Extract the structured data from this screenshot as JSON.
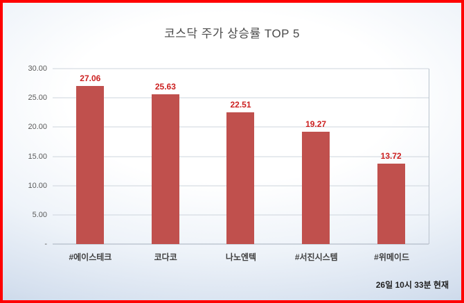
{
  "title": "코스닥 주가 상승률 TOP 5",
  "footer": "26일 10시  33분 현재",
  "frame": {
    "border_color": "#ff0000"
  },
  "chart_data": {
    "type": "bar",
    "title": "코스닥 주가 상승률 TOP 5",
    "categories": [
      "#에이스테크",
      "코다코",
      "나노엔텍",
      "#서진시스템",
      "#위메이드"
    ],
    "values": [
      27.06,
      25.63,
      22.51,
      19.27,
      13.72
    ],
    "value_labels": [
      "27.06",
      "25.63",
      "22.51",
      "19.27",
      "13.72"
    ],
    "ylim": [
      0,
      30
    ],
    "ytick_step": 5,
    "ytick_labels": [
      "-",
      "5.00",
      "10.00",
      "15.00",
      "20.00",
      "25.00",
      "30.00"
    ],
    "grid": true,
    "legend": "none",
    "bar_color": "#c0504d",
    "value_label_color": "#cc2020",
    "annotation": "26일 10시  33분 현재"
  }
}
